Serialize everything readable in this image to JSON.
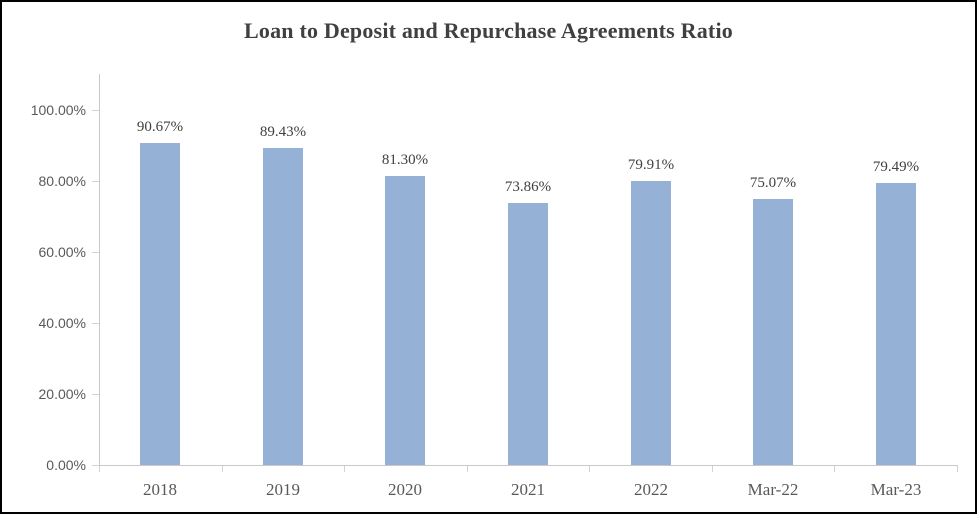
{
  "chart_data": {
    "type": "bar",
    "title": "Loan to Deposit and Repurchase Agreements Ratio",
    "categories": [
      "2018",
      "2019",
      "2020",
      "2021",
      "2022",
      "Mar-22",
      "Mar-23"
    ],
    "values": [
      90.67,
      89.43,
      81.3,
      73.86,
      79.91,
      75.07,
      79.49
    ],
    "value_labels": [
      "90.67%",
      "89.43%",
      "81.30%",
      "73.86%",
      "79.91%",
      "75.07%",
      "79.49%"
    ],
    "series_name": "Loan to Deposit and Repurchase Agreements Ratio",
    "xlabel": "",
    "ylabel": "",
    "y_axis": {
      "min": 0,
      "max": 110,
      "ticks": [
        {
          "value": 0,
          "label": "0.00%"
        },
        {
          "value": 20,
          "label": "20.00%"
        },
        {
          "value": 40,
          "label": "40.00%"
        },
        {
          "value": 60,
          "label": "60.00%"
        },
        {
          "value": 80,
          "label": "80.00%"
        },
        {
          "value": 100,
          "label": "100.00%"
        }
      ]
    },
    "grid": "off",
    "legend": "none",
    "colors": {
      "bar_fill": "#95b2d6",
      "axis_line": "#c9c9c9",
      "tick_line": "#d2d2d2",
      "axis_tick_label": "#595959",
      "data_label": "#404040",
      "title": "#404040",
      "frame_border": "#000000",
      "background": "#ffffff"
    }
  }
}
